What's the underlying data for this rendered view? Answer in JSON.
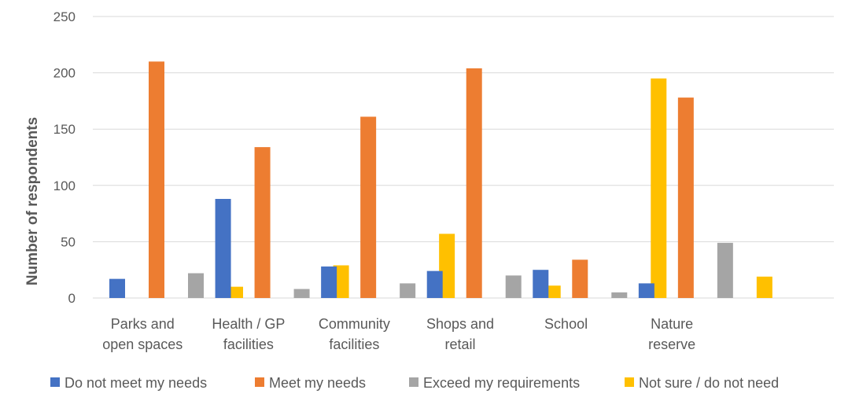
{
  "chart_data": {
    "type": "bar",
    "title": "",
    "xlabel": "",
    "ylabel": "Number of respondents",
    "ylim": [
      0,
      250
    ],
    "yticks": [
      0,
      50,
      100,
      150,
      200,
      250
    ],
    "grid": true,
    "legend_position": "bottom",
    "categories": [
      [
        "Parks and",
        "open spaces"
      ],
      [
        "Health / GP",
        "facilities"
      ],
      [
        "Community",
        "facilities"
      ],
      [
        "Shops and",
        "retail"
      ],
      [
        "School"
      ],
      [
        "Nature",
        "reserve"
      ]
    ],
    "series": [
      {
        "name": "Do not meet my needs",
        "color": "#4472c4",
        "values": [
          17,
          88,
          28,
          24,
          25,
          13
        ]
      },
      {
        "name": "Meet my needs",
        "color": "#ed7d31",
        "values": [
          210,
          134,
          161,
          204,
          34,
          178
        ]
      },
      {
        "name": "Exceed my requirements",
        "color": "#a5a5a5",
        "values": [
          22,
          8,
          13,
          20,
          5,
          49
        ]
      },
      {
        "name": "Not sure / do not need",
        "color": "#ffc000",
        "values": [
          10,
          29,
          57,
          11,
          195,
          19
        ]
      }
    ]
  }
}
